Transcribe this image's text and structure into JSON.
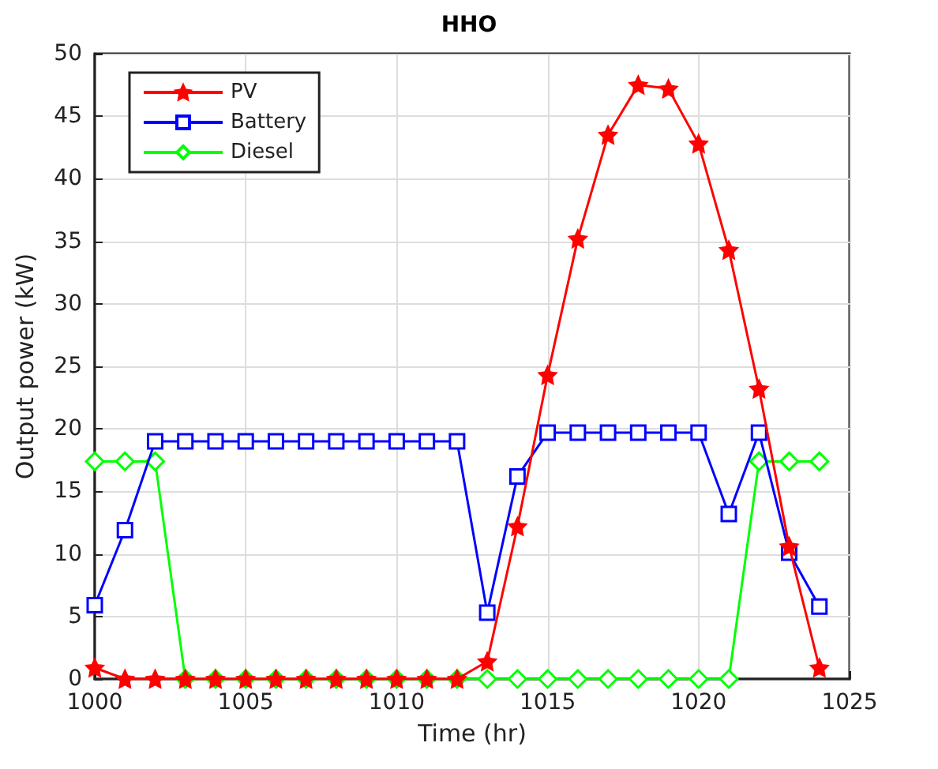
{
  "chart_data": {
    "type": "line",
    "title": "HHO",
    "xlabel": "Time (hr)",
    "ylabel": "Output power (kW)",
    "x": [
      1000,
      1001,
      1002,
      1003,
      1004,
      1005,
      1006,
      1007,
      1008,
      1009,
      1010,
      1011,
      1012,
      1013,
      1014,
      1015,
      1016,
      1017,
      1018,
      1019,
      1020,
      1021,
      1022,
      1023,
      1024
    ],
    "series": [
      {
        "name": "PV",
        "color": "#ff0000",
        "marker": "star",
        "values": [
          0.9,
          0,
          0,
          0,
          0,
          0,
          0,
          0,
          0,
          0,
          0,
          0,
          0,
          1.4,
          12.2,
          24.3,
          35.2,
          43.5,
          47.5,
          47.2,
          42.8,
          34.3,
          23.2,
          10.6,
          0.9
        ]
      },
      {
        "name": "Battery",
        "color": "#0000ff",
        "marker": "square",
        "values": [
          5.9,
          11.9,
          19,
          19,
          19,
          19,
          19,
          19,
          19,
          19,
          19,
          19,
          19,
          5.3,
          16.2,
          19.7,
          19.7,
          19.7,
          19.7,
          19.7,
          19.7,
          13.2,
          19.7,
          10.1,
          5.8
        ]
      },
      {
        "name": "Diesel",
        "color": "#00ff00",
        "marker": "diamond",
        "values": [
          17.4,
          17.4,
          17.4,
          0,
          0,
          0,
          0,
          0,
          0,
          0,
          0,
          0,
          0,
          0,
          0,
          0,
          0,
          0,
          0,
          0,
          0,
          0,
          17.4,
          17.4,
          17.4
        ]
      }
    ],
    "xlim": [
      1000,
      1025
    ],
    "xticks": [
      1000,
      1005,
      1010,
      1015,
      1020,
      1025
    ],
    "ylim": [
      0,
      50
    ],
    "yticks": [
      0,
      5,
      10,
      15,
      20,
      25,
      30,
      35,
      40,
      45,
      50
    ],
    "grid": true,
    "legend": "top left",
    "line_style": "solid"
  }
}
